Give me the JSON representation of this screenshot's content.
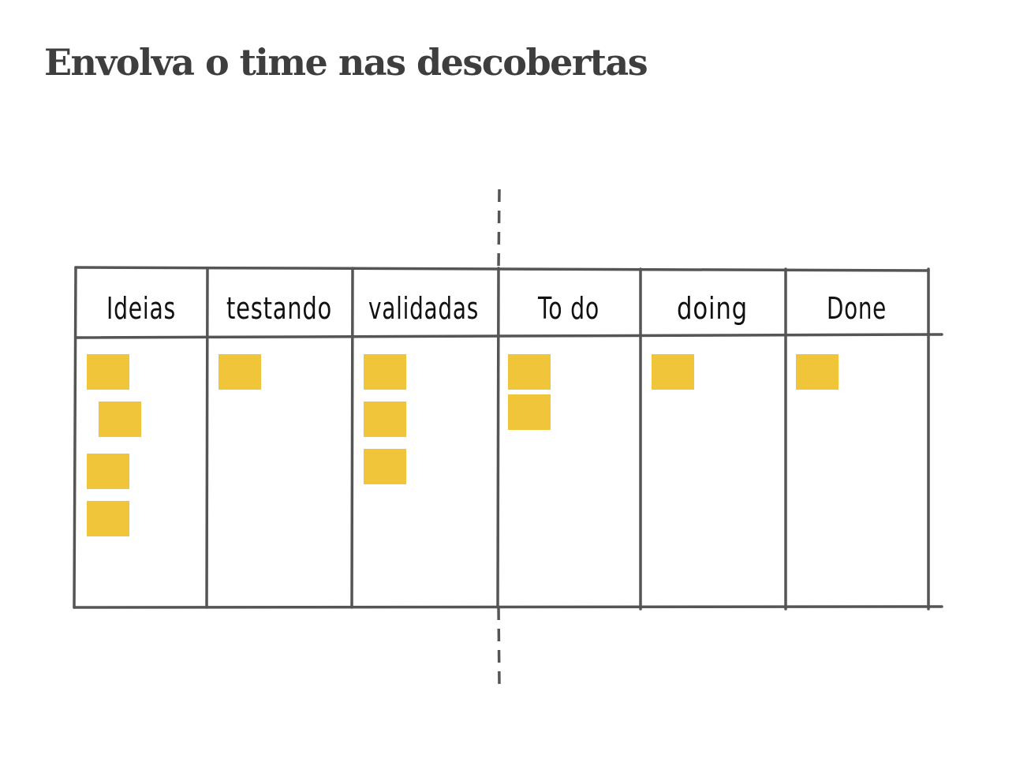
{
  "title": "Envolva o time nas descobertas",
  "colors": {
    "line": "#555555",
    "sticky_note": "#f0c53a",
    "title": "#3e3e3e"
  },
  "columns": [
    {
      "label": "Ideias",
      "notes": 4
    },
    {
      "label": "testando",
      "notes": 1
    },
    {
      "label": "validadas",
      "notes": 3
    },
    {
      "label": "To do",
      "notes": 2
    },
    {
      "label": "doing",
      "notes": 1
    },
    {
      "label": "Done",
      "notes": 1
    }
  ],
  "divider": {
    "style": "dashed",
    "between_columns": [
      "validadas",
      "To do"
    ]
  }
}
